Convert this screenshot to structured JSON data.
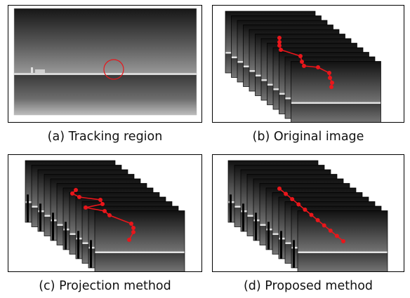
{
  "captions": {
    "a": "(a) Tracking region",
    "b": "(b) Original image",
    "c": "(c) Projection method",
    "d": "(d) Proposed method"
  },
  "colors": {
    "track": "#e8161b",
    "sky_top": "#1a1a1a",
    "horizon": "#d9d9d9",
    "sea": "#4a4a4a",
    "frame_border": "#000000"
  },
  "tracks": {
    "original": {
      "frames": 12
    },
    "projection": {
      "frames": 12
    },
    "proposed": {
      "frames": 12
    }
  }
}
